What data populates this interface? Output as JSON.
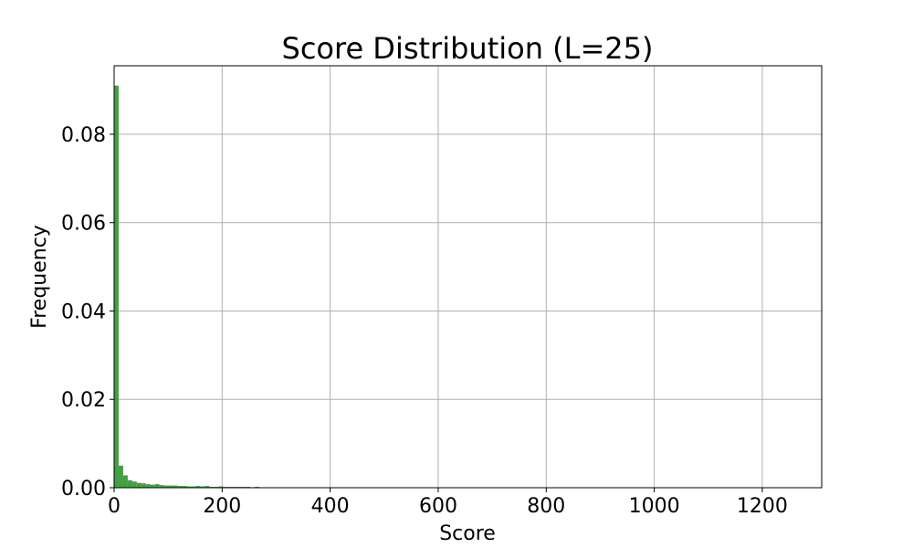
{
  "chart_data": {
    "type": "bar",
    "title": "Score Distribution (L=25)",
    "xlabel": "Score",
    "ylabel": "Frequency",
    "xlim": [
      0,
      1310
    ],
    "ylim": [
      0,
      0.0955
    ],
    "grid": true,
    "bar_color": "#3a9a3a",
    "x_ticks": [
      {
        "value": 0,
        "label": "0"
      },
      {
        "value": 200,
        "label": "200"
      },
      {
        "value": 400,
        "label": "400"
      },
      {
        "value": 600,
        "label": "600"
      },
      {
        "value": 800,
        "label": "800"
      },
      {
        "value": 1000,
        "label": "1000"
      },
      {
        "value": 1200,
        "label": "1200"
      }
    ],
    "y_ticks": [
      {
        "value": 0.0,
        "label": "0.00"
      },
      {
        "value": 0.02,
        "label": "0.02"
      },
      {
        "value": 0.04,
        "label": "0.04"
      },
      {
        "value": 0.06,
        "label": "0.06"
      },
      {
        "value": 0.08,
        "label": "0.08"
      }
    ],
    "bin_width": 8.4,
    "bin_start": 0,
    "values": [
      0.091,
      0.005,
      0.0028,
      0.0017,
      0.0014,
      0.0011,
      0.001,
      0.0008,
      0.0007,
      0.0008,
      0.0006,
      0.0005,
      0.0005,
      0.0005,
      0.0004,
      0.0004,
      0.0003,
      0.0003,
      0.0004,
      0.0003,
      0.0004,
      0.0002,
      0.0002,
      0.0003,
      0.0002,
      0.0002,
      0.0002,
      0.0002,
      0.0002,
      0.0002,
      0.0001,
      0.0002,
      0.0001,
      0.0001,
      0.0001,
      0.0001
    ]
  }
}
